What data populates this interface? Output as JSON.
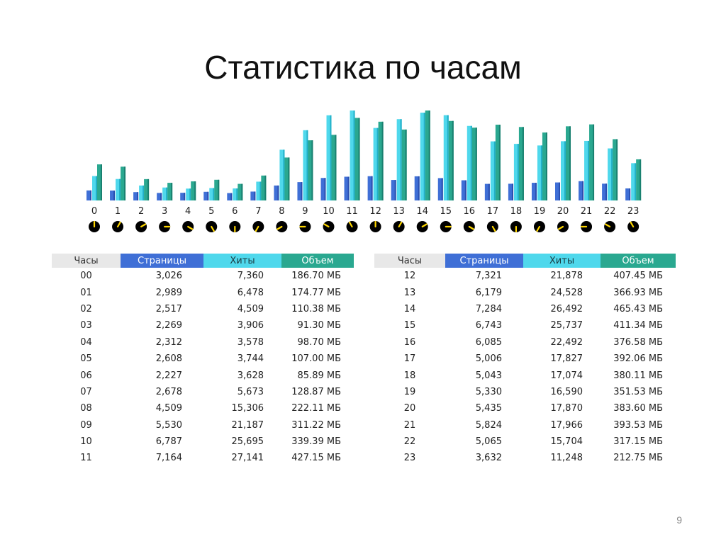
{
  "slide": {
    "title": "Статистика по часам",
    "page_number": "9"
  },
  "columns": [
    "Часы",
    "Страницы",
    "Хиты",
    "Объем"
  ],
  "colors": {
    "pages": "#3f6fd6",
    "hits": "#4fd8ec",
    "volume": "#2aa890",
    "hours_header": "#e8e8e8",
    "clock_icon": "#000000",
    "clock_hand": "#ffd700"
  },
  "chart_data": {
    "type": "bar",
    "categories": [
      "0",
      "1",
      "2",
      "3",
      "4",
      "5",
      "6",
      "7",
      "8",
      "9",
      "10",
      "11",
      "12",
      "13",
      "14",
      "15",
      "16",
      "17",
      "18",
      "19",
      "20",
      "21",
      "22",
      "23"
    ],
    "series": [
      {
        "name": "Страницы",
        "values": [
          3026,
          2989,
          2517,
          2269,
          2312,
          2608,
          2227,
          2678,
          4509,
          5530,
          6787,
          7164,
          7321,
          6179,
          7284,
          6743,
          6085,
          5006,
          5043,
          5330,
          5435,
          5824,
          5065,
          3632
        ]
      },
      {
        "name": "Хиты",
        "values": [
          7360,
          6478,
          4509,
          3906,
          3578,
          3744,
          3628,
          5673,
          15306,
          21187,
          25695,
          27141,
          21878,
          24528,
          26492,
          25737,
          22492,
          17827,
          17074,
          16590,
          17870,
          17966,
          15704,
          11248
        ]
      },
      {
        "name": "Объем",
        "values": [
          186.7,
          174.77,
          110.38,
          91.3,
          98.7,
          107.0,
          85.89,
          128.87,
          222.11,
          311.22,
          339.39,
          427.15,
          407.45,
          366.93,
          465.43,
          411.34,
          376.58,
          392.06,
          380.11,
          351.53,
          383.6,
          393.53,
          317.15,
          212.75
        ]
      }
    ],
    "clock_icons": true
  },
  "tables": {
    "left": {
      "rows": [
        [
          "00",
          "3,026",
          "7,360",
          "186.70 МБ"
        ],
        [
          "01",
          "2,989",
          "6,478",
          "174.77 МБ"
        ],
        [
          "02",
          "2,517",
          "4,509",
          "110.38 МБ"
        ],
        [
          "03",
          "2,269",
          "3,906",
          "91.30 МБ"
        ],
        [
          "04",
          "2,312",
          "3,578",
          "98.70 МБ"
        ],
        [
          "05",
          "2,608",
          "3,744",
          "107.00 МБ"
        ],
        [
          "06",
          "2,227",
          "3,628",
          "85.89 МБ"
        ],
        [
          "07",
          "2,678",
          "5,673",
          "128.87 МБ"
        ],
        [
          "08",
          "4,509",
          "15,306",
          "222.11 МБ"
        ],
        [
          "09",
          "5,530",
          "21,187",
          "311.22 МБ"
        ],
        [
          "10",
          "6,787",
          "25,695",
          "339.39 МБ"
        ],
        [
          "11",
          "7,164",
          "27,141",
          "427.15 МБ"
        ]
      ]
    },
    "right": {
      "rows": [
        [
          "12",
          "7,321",
          "21,878",
          "407.45 МБ"
        ],
        [
          "13",
          "6,179",
          "24,528",
          "366.93 МБ"
        ],
        [
          "14",
          "7,284",
          "26,492",
          "465.43 МБ"
        ],
        [
          "15",
          "6,743",
          "25,737",
          "411.34 МБ"
        ],
        [
          "16",
          "6,085",
          "22,492",
          "376.58 МБ"
        ],
        [
          "17",
          "5,006",
          "17,827",
          "392.06 МБ"
        ],
        [
          "18",
          "5,043",
          "17,074",
          "380.11 МБ"
        ],
        [
          "19",
          "5,330",
          "16,590",
          "351.53 МБ"
        ],
        [
          "20",
          "5,435",
          "17,870",
          "383.60 МБ"
        ],
        [
          "21",
          "5,824",
          "17,966",
          "393.53 МБ"
        ],
        [
          "22",
          "5,065",
          "15,704",
          "317.15 МБ"
        ],
        [
          "23",
          "3,632",
          "11,248",
          "212.75 МБ"
        ]
      ]
    }
  }
}
